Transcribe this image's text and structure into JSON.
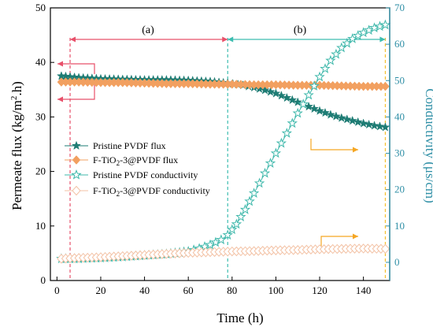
{
  "chart_data": {
    "type": "line",
    "xlabel": "Time (h)",
    "ylabel_left": "Permeate flux (kg/m²·h)",
    "ylabel_right": "Conductivity (μs/cm)",
    "xlim": [
      -3,
      152
    ],
    "ylim_left": [
      0,
      50
    ],
    "ylim_right": [
      -5,
      70
    ],
    "x_ticks": [
      0,
      20,
      40,
      60,
      80,
      100,
      120,
      140
    ],
    "y_ticks_left": [
      0,
      10,
      20,
      30,
      40,
      50
    ],
    "y_ticks_right": [
      0,
      10,
      20,
      30,
      40,
      50,
      60,
      70
    ],
    "grid": false,
    "legend_position": "center-left",
    "regions": [
      {
        "label": "(a)",
        "x_start": 6,
        "x_end": 78,
        "color": "#e8506a"
      },
      {
        "label": "(b)",
        "x_start": 78,
        "x_end": 150,
        "color": "#3dbdb0"
      }
    ],
    "series": [
      {
        "name": "Pristine PVDF flux",
        "axis": "left",
        "marker": "star-filled",
        "color": "#1e7c74",
        "x": [
          2,
          10,
          20,
          30,
          40,
          50,
          60,
          70,
          78,
          85,
          90,
          95,
          100,
          105,
          110,
          115,
          120,
          125,
          130,
          135,
          140,
          145,
          150
        ],
        "y": [
          37.5,
          37.2,
          37.0,
          36.9,
          36.8,
          36.8,
          36.7,
          36.5,
          36.2,
          35.8,
          35.4,
          34.9,
          34.3,
          33.5,
          32.7,
          31.9,
          31.1,
          30.4,
          29.8,
          29.3,
          28.8,
          28.4,
          28.1
        ]
      },
      {
        "name": "F-TiO₂-3@PVDF flux",
        "axis": "left",
        "marker": "diamond-filled",
        "color": "#f2a060",
        "x": [
          2,
          10,
          20,
          30,
          40,
          50,
          60,
          70,
          80,
          90,
          100,
          110,
          120,
          130,
          140,
          150
        ],
        "y": [
          36.4,
          36.4,
          36.3,
          36.3,
          36.2,
          36.1,
          36.1,
          36.0,
          36.0,
          35.9,
          35.9,
          35.8,
          35.8,
          35.7,
          35.6,
          35.6
        ]
      },
      {
        "name": "Pristine PVDF conductivity",
        "axis": "right",
        "marker": "star-open",
        "color": "#3fb8ab",
        "x": [
          2,
          10,
          20,
          30,
          40,
          50,
          60,
          65,
          70,
          75,
          78,
          82,
          86,
          90,
          95,
          100,
          105,
          110,
          115,
          120,
          125,
          130,
          135,
          140,
          145,
          150
        ],
        "y": [
          1.0,
          1.0,
          1.2,
          1.5,
          1.9,
          2.3,
          3.0,
          3.8,
          4.8,
          6.2,
          7.5,
          10.5,
          14.5,
          19.0,
          24.5,
          30.0,
          35.5,
          41.0,
          46.0,
          51.0,
          55.5,
          59.0,
          61.5,
          63.2,
          64.5,
          65.3
        ]
      },
      {
        "name": "F-TiO₂-3@PVDF conductivity",
        "axis": "right",
        "marker": "diamond-open",
        "color": "#f3c2a5",
        "x": [
          2,
          10,
          20,
          30,
          40,
          50,
          60,
          70,
          80,
          90,
          100,
          110,
          120,
          130,
          140,
          150
        ],
        "y": [
          1.0,
          1.2,
          1.4,
          1.7,
          2.0,
          2.3,
          2.6,
          2.8,
          3.0,
          3.1,
          3.3,
          3.4,
          3.6,
          3.7,
          3.8,
          3.7
        ]
      }
    ]
  },
  "legend": {
    "items": [
      {
        "pre": "Pristine PVDF flux",
        "sub": "",
        "post": ""
      },
      {
        "pre": "F-TiO",
        "sub": "2",
        "post": "-3@PVDF flux"
      },
      {
        "pre": "Pristine PVDF conductivity",
        "sub": "",
        "post": ""
      },
      {
        "pre": "F-TiO",
        "sub": "2",
        "post": "-3@PVDF conductivity"
      }
    ]
  },
  "axis_titles": {
    "x": "Time (h)",
    "y_left_pre": "Permeate flux (kg/m",
    "y_left_sup": "2",
    "y_left_post": ".h)",
    "y_right": "Conductivity (μs/cm)"
  },
  "colors": {
    "axis_right": "#2f8fa6",
    "arrow_left": "#e8506a",
    "arrow_orange": "#f5a623",
    "region_a_line": "#e8506a",
    "region_b_line": "#3dbdb0",
    "end_line": "#f5c02e"
  }
}
